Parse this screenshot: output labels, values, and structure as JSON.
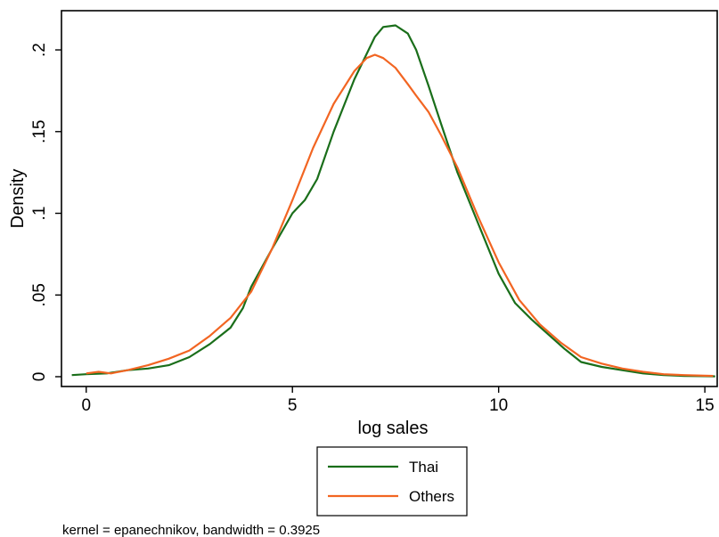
{
  "chart_data": {
    "type": "line",
    "xlabel": "log sales",
    "ylabel": "Density",
    "xlim": [
      -0.6,
      15.3
    ],
    "ylim": [
      -0.006,
      0.224
    ],
    "xticks": [
      0,
      5,
      10,
      15
    ],
    "xtick_labels": [
      "0",
      "5",
      "10",
      "15"
    ],
    "yticks": [
      0,
      0.05,
      0.1,
      0.15,
      0.2
    ],
    "ytick_labels": [
      "0",
      ".05",
      ".1",
      ".15",
      ".2"
    ],
    "grid": false,
    "legend_position": "bottom-center",
    "note": "kernel = epanechnikov, bandwidth = 0.3925",
    "series": [
      {
        "name": "Thai",
        "color": "#1a6e1a",
        "x": [
          -0.35,
          0.0,
          0.5,
          1.0,
          1.5,
          2.0,
          2.5,
          3.0,
          3.5,
          3.8,
          4.0,
          4.5,
          5.0,
          5.3,
          5.6,
          6.0,
          6.5,
          7.0,
          7.2,
          7.5,
          7.8,
          8.0,
          8.3,
          8.6,
          9.0,
          9.5,
          10.0,
          10.4,
          10.8,
          11.2,
          11.6,
          12.0,
          12.5,
          13.0,
          13.5,
          14.0,
          14.5,
          15.0,
          15.25
        ],
        "y": [
          0.001,
          0.0015,
          0.002,
          0.004,
          0.005,
          0.007,
          0.012,
          0.02,
          0.03,
          0.042,
          0.055,
          0.078,
          0.1,
          0.108,
          0.121,
          0.15,
          0.182,
          0.208,
          0.214,
          0.215,
          0.21,
          0.2,
          0.178,
          0.155,
          0.125,
          0.094,
          0.063,
          0.045,
          0.035,
          0.026,
          0.017,
          0.009,
          0.006,
          0.004,
          0.002,
          0.001,
          0.0005,
          0.0003,
          0.0002
        ]
      },
      {
        "name": "Others",
        "color": "#f26522",
        "x": [
          0.0,
          0.3,
          0.6,
          1.0,
          1.5,
          2.0,
          2.5,
          3.0,
          3.5,
          4.0,
          4.5,
          5.0,
          5.5,
          6.0,
          6.5,
          6.8,
          7.0,
          7.2,
          7.5,
          7.8,
          8.0,
          8.3,
          8.6,
          9.0,
          9.5,
          10.0,
          10.5,
          11.0,
          11.5,
          12.0,
          12.5,
          13.0,
          13.5,
          14.0,
          14.5,
          15.0,
          15.2
        ],
        "y": [
          0.002,
          0.003,
          0.002,
          0.004,
          0.007,
          0.011,
          0.016,
          0.025,
          0.036,
          0.052,
          0.078,
          0.108,
          0.14,
          0.167,
          0.187,
          0.195,
          0.197,
          0.195,
          0.189,
          0.179,
          0.172,
          0.162,
          0.148,
          0.128,
          0.098,
          0.07,
          0.047,
          0.032,
          0.021,
          0.012,
          0.008,
          0.005,
          0.003,
          0.0015,
          0.001,
          0.0006,
          0.0005
        ]
      }
    ]
  }
}
